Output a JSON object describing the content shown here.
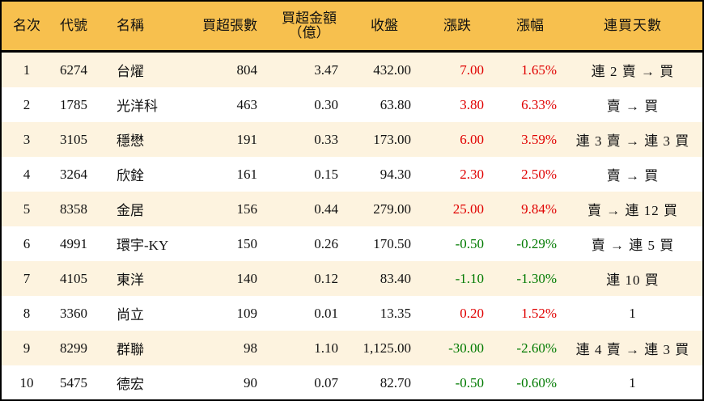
{
  "colors": {
    "header_bg": "#F7C04E",
    "row_alt_bg": "#FDF3DF",
    "up": "#E00000",
    "down": "#007A00"
  },
  "table": {
    "headers": {
      "rank": "名次",
      "code": "代號",
      "name": "名稱",
      "net_buy_lots": "買超張數",
      "net_buy_amount_line1": "買超金額",
      "net_buy_amount_line2": "（億）",
      "close": "收盤",
      "change": "漲跌",
      "change_pct": "漲幅",
      "consecutive_days": "連買天數"
    },
    "rows": [
      {
        "rank": "1",
        "code": "6274",
        "name": "台燿",
        "lots": "804",
        "amount": "3.47",
        "close": "432.00",
        "change": "7.00",
        "pct": "1.65%",
        "trend": "up",
        "days": "連 2 賣 → 買"
      },
      {
        "rank": "2",
        "code": "1785",
        "name": "光洋科",
        "lots": "463",
        "amount": "0.30",
        "close": "63.80",
        "change": "3.80",
        "pct": "6.33%",
        "trend": "up",
        "days": "賣 → 買"
      },
      {
        "rank": "3",
        "code": "3105",
        "name": "穩懋",
        "lots": "191",
        "amount": "0.33",
        "close": "173.00",
        "change": "6.00",
        "pct": "3.59%",
        "trend": "up",
        "days": "連 3 賣 → 連 3 買"
      },
      {
        "rank": "4",
        "code": "3264",
        "name": "欣銓",
        "lots": "161",
        "amount": "0.15",
        "close": "94.30",
        "change": "2.30",
        "pct": "2.50%",
        "trend": "up",
        "days": "賣 → 買"
      },
      {
        "rank": "5",
        "code": "8358",
        "name": "金居",
        "lots": "156",
        "amount": "0.44",
        "close": "279.00",
        "change": "25.00",
        "pct": "9.84%",
        "trend": "up",
        "days": "賣 → 連 12 買"
      },
      {
        "rank": "6",
        "code": "4991",
        "name": "環宇-KY",
        "lots": "150",
        "amount": "0.26",
        "close": "170.50",
        "change": "-0.50",
        "pct": "-0.29%",
        "trend": "down",
        "days": "賣 → 連 5 買"
      },
      {
        "rank": "7",
        "code": "4105",
        "name": "東洋",
        "lots": "140",
        "amount": "0.12",
        "close": "83.40",
        "change": "-1.10",
        "pct": "-1.30%",
        "trend": "down",
        "days": "連 10 買"
      },
      {
        "rank": "8",
        "code": "3360",
        "name": "尚立",
        "lots": "109",
        "amount": "0.01",
        "close": "13.35",
        "change": "0.20",
        "pct": "1.52%",
        "trend": "up",
        "days": "1"
      },
      {
        "rank": "9",
        "code": "8299",
        "name": "群聯",
        "lots": "98",
        "amount": "1.10",
        "close": "1,125.00",
        "change": "-30.00",
        "pct": "-2.60%",
        "trend": "down",
        "days": "連 4 賣 → 連 3 買"
      },
      {
        "rank": "10",
        "code": "5475",
        "name": "德宏",
        "lots": "90",
        "amount": "0.07",
        "close": "82.70",
        "change": "-0.50",
        "pct": "-0.60%",
        "trend": "down",
        "days": "1"
      }
    ]
  }
}
